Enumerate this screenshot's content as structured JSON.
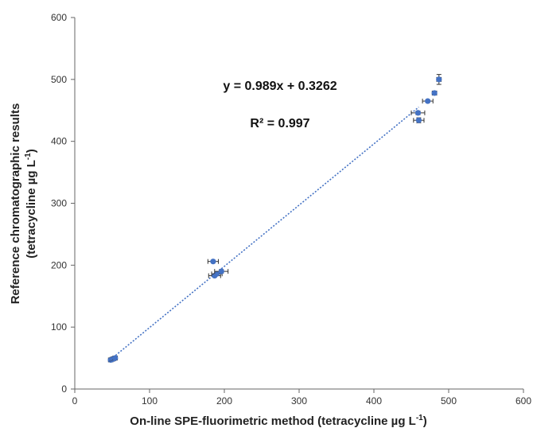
{
  "chart_data": {
    "type": "scatter",
    "title": "",
    "xlabel": "On-line SPE-fluorimetric method (tetracycline µg L",
    "xlabel_sup": "-1",
    "xlabel_end": ")",
    "ylabel_line1": "Reference chromatographic results",
    "ylabel_line2": "(tetracycline µg L",
    "ylabel_sup": "-1",
    "ylabel_end": ")",
    "xlim": [
      0,
      600
    ],
    "ylim": [
      0,
      600
    ],
    "x_ticks": [
      "0",
      "100",
      "200",
      "300",
      "400",
      "500",
      "600"
    ],
    "y_ticks": [
      "0",
      "100",
      "200",
      "300",
      "400",
      "500",
      "600"
    ],
    "grid": false,
    "legend": "none",
    "marker_color": "#4472C4",
    "trendline_color": "#4472C4",
    "equation_text": "y = 0.989x + 0.3262",
    "r2_text": "R² = 0.997",
    "trendline": {
      "slope": 0.989,
      "intercept": 0.3262,
      "x_range": [
        48,
        460
      ]
    },
    "points": [
      {
        "x": 48,
        "y": 47,
        "xerr": 3,
        "yerr": 1
      },
      {
        "x": 50,
        "y": 48,
        "xerr": 3,
        "yerr": 1
      },
      {
        "x": 52,
        "y": 49,
        "xerr": 3,
        "yerr": 2
      },
      {
        "x": 54,
        "y": 50,
        "xerr": 3,
        "yerr": 1
      },
      {
        "x": 185,
        "y": 206,
        "xerr": 7,
        "yerr": 2
      },
      {
        "x": 187,
        "y": 183,
        "xerr": 8,
        "yerr": 2
      },
      {
        "x": 190,
        "y": 186,
        "xerr": 7,
        "yerr": 2
      },
      {
        "x": 196,
        "y": 190,
        "xerr": 9,
        "yerr": 3
      },
      {
        "x": 459,
        "y": 446,
        "xerr": 9,
        "yerr": 3
      },
      {
        "x": 460,
        "y": 434,
        "xerr": 7,
        "yerr": 4
      },
      {
        "x": 472,
        "y": 465,
        "xerr": 7,
        "yerr": 2
      },
      {
        "x": 481,
        "y": 478,
        "xerr": 3,
        "yerr": 3
      },
      {
        "x": 487,
        "y": 500,
        "xerr": 3,
        "yerr": 8
      }
    ]
  }
}
